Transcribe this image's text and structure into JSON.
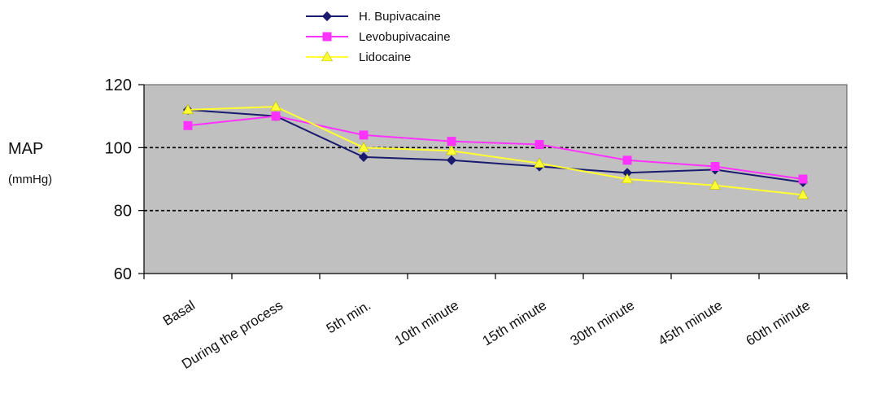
{
  "chart_data": {
    "type": "line",
    "title": "",
    "ylabel": "MAP",
    "ylabel_unit": "(mmHg)",
    "xlabel": "",
    "ylim": [
      60,
      120
    ],
    "yticks": [
      60,
      80,
      100,
      120
    ],
    "gridlines": [
      80,
      100
    ],
    "grid": "dashed horizontal at 80 and 100",
    "background": "#c0c0c0",
    "legend_position": "top",
    "categories": [
      "Basal",
      "During the process",
      "5th min.",
      "10th minute",
      "15th minute",
      "30th minute",
      "45th minute",
      "60th minute"
    ],
    "series": [
      {
        "name": "H. Bupivacaine",
        "color": "#1a1a6e",
        "marker": "diamond",
        "values": [
          112,
          110,
          97,
          96,
          94,
          92,
          93,
          89
        ]
      },
      {
        "name": "Levobupivacaine",
        "color": "#ff33ff",
        "marker": "square",
        "values": [
          107,
          110,
          104,
          102,
          101,
          96,
          94,
          90
        ]
      },
      {
        "name": "Lidocaine",
        "color": "#ffff33",
        "marker": "triangle",
        "values": [
          112,
          113,
          100,
          99,
          95,
          90,
          88,
          85
        ]
      }
    ]
  }
}
